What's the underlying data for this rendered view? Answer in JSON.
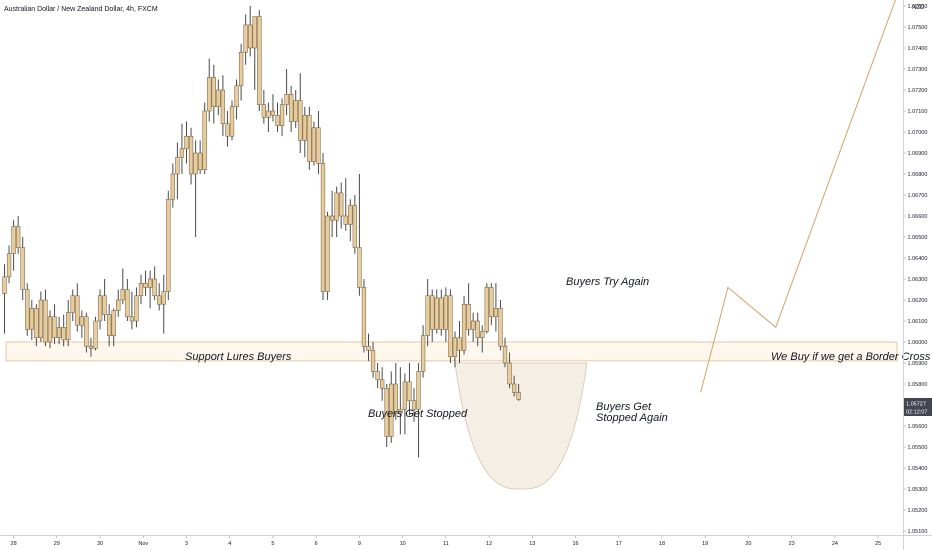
{
  "header": {
    "symbol_title": "Australian Dollar / New Zealand Dollar, 4h, FXCM"
  },
  "currency_label": "NZD",
  "price_tags": {
    "last_price": "1.05727",
    "countdown": "02:12:07"
  },
  "colors": {
    "candle": "#e8cc9c",
    "candle_border": "#5d4a2c",
    "wick": "#4a4a4a",
    "zone_fill": "#fdf7ee",
    "zone_border": "#e0bd89",
    "bowl_fill": "#f1e8dc",
    "bowl_stroke": "#d9c5aa",
    "projection": "#d4a366",
    "axis_line": "#d0d3db",
    "tag_bg": "#434651"
  },
  "annotations": {
    "support": "Support Lures Buyers",
    "buy_if": "We Buy if we get a Border Cross",
    "buyers_stopped": "Buyers Get Stopped",
    "buyers_try": "Buyers Try Again",
    "stopped_again_1": "Buyers Get",
    "stopped_again_2": "Stopped Again"
  },
  "chart_data": {
    "type": "candlestick",
    "title": "Australian Dollar / New Zealand Dollar, 4h, FXCM",
    "y_unit": "NZD",
    "ylim": [
      1.0508,
      1.0772
    ],
    "y_ticks": [
      "1.05100",
      "1.05200",
      "1.05300",
      "1.05400",
      "1.05500",
      "1.05600",
      "1.05700",
      "1.05800",
      "1.05900",
      "1.06000",
      "1.06100",
      "1.06200",
      "1.06300",
      "1.06400",
      "1.06500",
      "1.06600",
      "1.06700",
      "1.06800",
      "1.06900",
      "1.07000",
      "1.07100",
      "1.07200",
      "1.07300",
      "1.07400",
      "1.07500",
      "1.07600"
    ],
    "x_ticks": [
      "28",
      "29",
      "30",
      "Nov",
      "3",
      "4",
      "5",
      "6",
      "9",
      "10",
      "11",
      "12",
      "13",
      "16",
      "17",
      "18",
      "19",
      "20",
      "23",
      "24",
      "25"
    ],
    "x_tick_index": [
      2,
      11.5,
      21,
      30.5,
      40,
      49.5,
      59,
      68.5,
      78,
      87.5,
      97,
      106.5,
      116,
      125.5,
      135,
      144.5,
      154,
      163.5,
      173,
      182.5,
      192
    ],
    "x_range": [
      0,
      197
    ],
    "grid": false,
    "support_zone": [
      1.0591,
      1.06
    ],
    "last_price": 1.05727,
    "candles": [
      {
        "o": 1.0623,
        "h": 1.0637,
        "l": 1.0604,
        "c": 1.0631
      },
      {
        "o": 1.0631,
        "h": 1.0646,
        "l": 1.0628,
        "c": 1.0642
      },
      {
        "o": 1.0642,
        "h": 1.0658,
        "l": 1.0634,
        "c": 1.0655
      },
      {
        "o": 1.0655,
        "h": 1.066,
        "l": 1.0642,
        "c": 1.0645
      },
      {
        "o": 1.0645,
        "h": 1.065,
        "l": 1.062,
        "c": 1.0625
      },
      {
        "o": 1.0625,
        "h": 1.0628,
        "l": 1.0603,
        "c": 1.0606
      },
      {
        "o": 1.0606,
        "h": 1.062,
        "l": 1.0601,
        "c": 1.0616
      },
      {
        "o": 1.0616,
        "h": 1.0618,
        "l": 1.0598,
        "c": 1.0602
      },
      {
        "o": 1.0602,
        "h": 1.0624,
        "l": 1.06,
        "c": 1.062
      },
      {
        "o": 1.062,
        "h": 1.0625,
        "l": 1.0598,
        "c": 1.06
      },
      {
        "o": 1.06,
        "h": 1.0615,
        "l": 1.0597,
        "c": 1.0612
      },
      {
        "o": 1.0612,
        "h": 1.0618,
        "l": 1.0599,
        "c": 1.0602
      },
      {
        "o": 1.0602,
        "h": 1.0612,
        "l": 1.0599,
        "c": 1.0607
      },
      {
        "o": 1.0607,
        "h": 1.0613,
        "l": 1.0598,
        "c": 1.0601
      },
      {
        "o": 1.0601,
        "h": 1.062,
        "l": 1.0598,
        "c": 1.0614
      },
      {
        "o": 1.0614,
        "h": 1.0625,
        "l": 1.061,
        "c": 1.0622
      },
      {
        "o": 1.0622,
        "h": 1.0628,
        "l": 1.0605,
        "c": 1.0608
      },
      {
        "o": 1.0608,
        "h": 1.0615,
        "l": 1.0602,
        "c": 1.0612
      },
      {
        "o": 1.0612,
        "h": 1.0614,
        "l": 1.0595,
        "c": 1.0598
      },
      {
        "o": 1.0598,
        "h": 1.0602,
        "l": 1.0593,
        "c": 1.0597
      },
      {
        "o": 1.0597,
        "h": 1.0612,
        "l": 1.0596,
        "c": 1.061
      },
      {
        "o": 1.061,
        "h": 1.0625,
        "l": 1.0606,
        "c": 1.0622
      },
      {
        "o": 1.0622,
        "h": 1.063,
        "l": 1.061,
        "c": 1.0613
      },
      {
        "o": 1.0613,
        "h": 1.0618,
        "l": 1.0598,
        "c": 1.0603
      },
      {
        "o": 1.0603,
        "h": 1.0616,
        "l": 1.0598,
        "c": 1.0615
      },
      {
        "o": 1.0615,
        "h": 1.0625,
        "l": 1.0612,
        "c": 1.062
      },
      {
        "o": 1.062,
        "h": 1.0635,
        "l": 1.0618,
        "c": 1.0625
      },
      {
        "o": 1.0625,
        "h": 1.063,
        "l": 1.061,
        "c": 1.0612
      },
      {
        "o": 1.0612,
        "h": 1.0624,
        "l": 1.0606,
        "c": 1.061
      },
      {
        "o": 1.061,
        "h": 1.0626,
        "l": 1.0607,
        "c": 1.0622
      },
      {
        "o": 1.0622,
        "h": 1.0632,
        "l": 1.0618,
        "c": 1.0628
      },
      {
        "o": 1.0628,
        "h": 1.0634,
        "l": 1.0622,
        "c": 1.0626
      },
      {
        "o": 1.0626,
        "h": 1.0634,
        "l": 1.0616,
        "c": 1.063
      },
      {
        "o": 1.063,
        "h": 1.0636,
        "l": 1.062,
        "c": 1.0622
      },
      {
        "o": 1.0622,
        "h": 1.0628,
        "l": 1.0615,
        "c": 1.0618
      },
      {
        "o": 1.0618,
        "h": 1.0632,
        "l": 1.0604,
        "c": 1.0624
      },
      {
        "o": 1.0624,
        "h": 1.0672,
        "l": 1.062,
        "c": 1.0668
      },
      {
        "o": 1.0668,
        "h": 1.0685,
        "l": 1.0664,
        "c": 1.068
      },
      {
        "o": 1.068,
        "h": 1.0695,
        "l": 1.0668,
        "c": 1.0688
      },
      {
        "o": 1.0688,
        "h": 1.0704,
        "l": 1.068,
        "c": 1.0692
      },
      {
        "o": 1.0692,
        "h": 1.0705,
        "l": 1.0685,
        "c": 1.0698
      },
      {
        "o": 1.0698,
        "h": 1.0702,
        "l": 1.0675,
        "c": 1.068
      },
      {
        "o": 1.068,
        "h": 1.0696,
        "l": 1.065,
        "c": 1.069
      },
      {
        "o": 1.069,
        "h": 1.0696,
        "l": 1.068,
        "c": 1.0682
      },
      {
        "o": 1.0682,
        "h": 1.0714,
        "l": 1.068,
        "c": 1.071
      },
      {
        "o": 1.071,
        "h": 1.0735,
        "l": 1.0705,
        "c": 1.0726
      },
      {
        "o": 1.0726,
        "h": 1.0732,
        "l": 1.0704,
        "c": 1.0712
      },
      {
        "o": 1.0712,
        "h": 1.0725,
        "l": 1.0708,
        "c": 1.072
      },
      {
        "o": 1.072,
        "h": 1.0727,
        "l": 1.0698,
        "c": 1.0704
      },
      {
        "o": 1.0704,
        "h": 1.071,
        "l": 1.0693,
        "c": 1.0698
      },
      {
        "o": 1.0698,
        "h": 1.0715,
        "l": 1.0696,
        "c": 1.0712
      },
      {
        "o": 1.0712,
        "h": 1.0725,
        "l": 1.0706,
        "c": 1.0722
      },
      {
        "o": 1.0722,
        "h": 1.0742,
        "l": 1.0715,
        "c": 1.0738
      },
      {
        "o": 1.0738,
        "h": 1.0756,
        "l": 1.0732,
        "c": 1.0751
      },
      {
        "o": 1.0751,
        "h": 1.076,
        "l": 1.0736,
        "c": 1.074
      },
      {
        "o": 1.074,
        "h": 1.0755,
        "l": 1.072,
        "c": 1.0755
      },
      {
        "o": 1.0755,
        "h": 1.0758,
        "l": 1.071,
        "c": 1.0713
      },
      {
        "o": 1.0713,
        "h": 1.072,
        "l": 1.0704,
        "c": 1.0707
      },
      {
        "o": 1.0707,
        "h": 1.0714,
        "l": 1.07,
        "c": 1.071
      },
      {
        "o": 1.071,
        "h": 1.0718,
        "l": 1.0705,
        "c": 1.0708
      },
      {
        "o": 1.0708,
        "h": 1.0714,
        "l": 1.07,
        "c": 1.0703
      },
      {
        "o": 1.0703,
        "h": 1.0716,
        "l": 1.0698,
        "c": 1.0713
      },
      {
        "o": 1.0713,
        "h": 1.073,
        "l": 1.0708,
        "c": 1.0718
      },
      {
        "o": 1.0718,
        "h": 1.0722,
        "l": 1.07,
        "c": 1.0705
      },
      {
        "o": 1.0705,
        "h": 1.072,
        "l": 1.0702,
        "c": 1.0715
      },
      {
        "o": 1.0715,
        "h": 1.0728,
        "l": 1.069,
        "c": 1.0696
      },
      {
        "o": 1.0696,
        "h": 1.0712,
        "l": 1.0688,
        "c": 1.0708
      },
      {
        "o": 1.0708,
        "h": 1.0712,
        "l": 1.0682,
        "c": 1.0686
      },
      {
        "o": 1.0686,
        "h": 1.0705,
        "l": 1.0684,
        "c": 1.0702
      },
      {
        "o": 1.0702,
        "h": 1.071,
        "l": 1.068,
        "c": 1.0685
      },
      {
        "o": 1.0685,
        "h": 1.069,
        "l": 1.062,
        "c": 1.0624
      },
      {
        "o": 1.0624,
        "h": 1.0662,
        "l": 1.062,
        "c": 1.066
      },
      {
        "o": 1.066,
        "h": 1.0672,
        "l": 1.065,
        "c": 1.0658
      },
      {
        "o": 1.0658,
        "h": 1.0674,
        "l": 1.065,
        "c": 1.0671
      },
      {
        "o": 1.0671,
        "h": 1.0676,
        "l": 1.0654,
        "c": 1.066
      },
      {
        "o": 1.066,
        "h": 1.0678,
        "l": 1.0653,
        "c": 1.0656
      },
      {
        "o": 1.0656,
        "h": 1.0668,
        "l": 1.0648,
        "c": 1.0665
      },
      {
        "o": 1.0665,
        "h": 1.067,
        "l": 1.0642,
        "c": 1.0645
      },
      {
        "o": 1.0645,
        "h": 1.068,
        "l": 1.0622,
        "c": 1.0626
      },
      {
        "o": 1.0626,
        "h": 1.063,
        "l": 1.0595,
        "c": 1.0598
      },
      {
        "o": 1.0598,
        "h": 1.0604,
        "l": 1.0591,
        "c": 1.0596
      },
      {
        "o": 1.0596,
        "h": 1.06,
        "l": 1.0583,
        "c": 1.0586
      },
      {
        "o": 1.0586,
        "h": 1.059,
        "l": 1.0578,
        "c": 1.0582
      },
      {
        "o": 1.0582,
        "h": 1.0588,
        "l": 1.0572,
        "c": 1.0578
      },
      {
        "o": 1.0578,
        "h": 1.058,
        "l": 1.055,
        "c": 1.0555
      },
      {
        "o": 1.0555,
        "h": 1.0586,
        "l": 1.0552,
        "c": 1.058
      },
      {
        "o": 1.058,
        "h": 1.059,
        "l": 1.0563,
        "c": 1.0566
      },
      {
        "o": 1.0566,
        "h": 1.0588,
        "l": 1.0556,
        "c": 1.0568
      },
      {
        "o": 1.0568,
        "h": 1.0585,
        "l": 1.0556,
        "c": 1.0581
      },
      {
        "o": 1.0581,
        "h": 1.059,
        "l": 1.0565,
        "c": 1.0572
      },
      {
        "o": 1.0572,
        "h": 1.0578,
        "l": 1.0562,
        "c": 1.0568
      },
      {
        "o": 1.0568,
        "h": 1.059,
        "l": 1.0545,
        "c": 1.0586
      },
      {
        "o": 1.0586,
        "h": 1.0608,
        "l": 1.0583,
        "c": 1.0603
      },
      {
        "o": 1.0603,
        "h": 1.063,
        "l": 1.0598,
        "c": 1.0622
      },
      {
        "o": 1.0622,
        "h": 1.0625,
        "l": 1.06,
        "c": 1.0606
      },
      {
        "o": 1.0606,
        "h": 1.0625,
        "l": 1.0604,
        "c": 1.0621
      },
      {
        "o": 1.0621,
        "h": 1.0625,
        "l": 1.0603,
        "c": 1.0606
      },
      {
        "o": 1.0606,
        "h": 1.0626,
        "l": 1.06,
        "c": 1.0622
      },
      {
        "o": 1.0622,
        "h": 1.0625,
        "l": 1.059,
        "c": 1.0593
      },
      {
        "o": 1.0593,
        "h": 1.0605,
        "l": 1.0588,
        "c": 1.0602
      },
      {
        "o": 1.0602,
        "h": 1.061,
        "l": 1.059,
        "c": 1.0596
      },
      {
        "o": 1.0596,
        "h": 1.0622,
        "l": 1.0594,
        "c": 1.0618
      },
      {
        "o": 1.0618,
        "h": 1.0628,
        "l": 1.0603,
        "c": 1.0606
      },
      {
        "o": 1.0606,
        "h": 1.0614,
        "l": 1.06,
        "c": 1.061
      },
      {
        "o": 1.061,
        "h": 1.0614,
        "l": 1.0598,
        "c": 1.0602
      },
      {
        "o": 1.0602,
        "h": 1.0608,
        "l": 1.0595,
        "c": 1.0605
      },
      {
        "o": 1.0605,
        "h": 1.0628,
        "l": 1.0604,
        "c": 1.0626
      },
      {
        "o": 1.0626,
        "h": 1.0628,
        "l": 1.0608,
        "c": 1.0612
      },
      {
        "o": 1.0612,
        "h": 1.0628,
        "l": 1.0605,
        "c": 1.0616
      },
      {
        "o": 1.0616,
        "h": 1.062,
        "l": 1.0596,
        "c": 1.0598
      },
      {
        "o": 1.0598,
        "h": 1.0602,
        "l": 1.0588,
        "c": 1.059
      },
      {
        "o": 1.059,
        "h": 1.0595,
        "l": 1.0578,
        "c": 1.058
      },
      {
        "o": 1.058,
        "h": 1.0584,
        "l": 1.0574,
        "c": 1.0576
      },
      {
        "o": 1.0576,
        "h": 1.058,
        "l": 1.0572,
        "c": 1.05727
      }
    ],
    "bowl": {
      "x_index": [
        99,
        128
      ],
      "top": 1.059,
      "bottom": 1.053
    },
    "projection": [
      {
        "i": 153,
        "y": 1.0576
      },
      {
        "i": 159,
        "y": 1.0626
      },
      {
        "i": 169.5,
        "y": 1.0607
      },
      {
        "i": 197,
        "y": 1.077
      }
    ]
  }
}
